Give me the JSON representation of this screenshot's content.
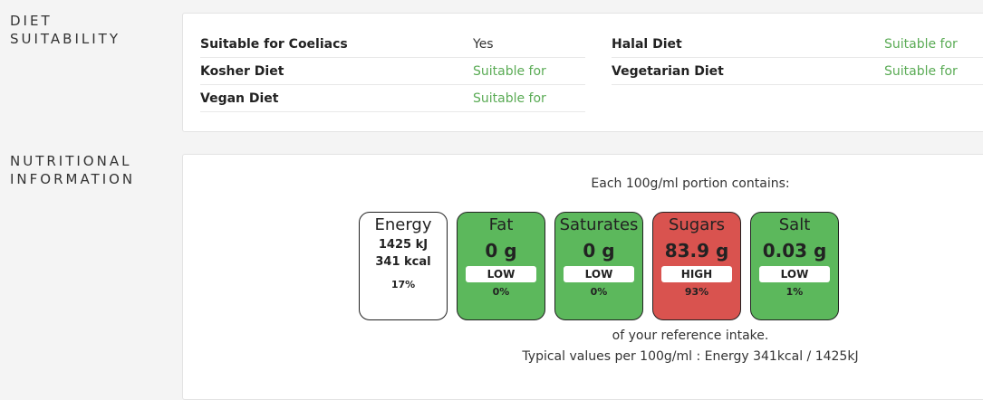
{
  "diet": {
    "label_line1": "DIET",
    "label_line2": "SUITABILITY",
    "left": [
      {
        "name": "Suitable for Coeliacs",
        "value": "Yes"
      },
      {
        "name": "Kosher Diet",
        "value": "Suitable for"
      },
      {
        "name": "Vegan Diet",
        "value": "Suitable for"
      }
    ],
    "right": [
      {
        "name": "Halal Diet",
        "value": "Suitable for"
      },
      {
        "name": "Vegetarian Diet",
        "value": "Suitable for"
      }
    ]
  },
  "nutrition": {
    "label_line1": "NUTRITIONAL",
    "label_line2": "INFORMATION",
    "portion_text": "Each 100g/ml portion contains:",
    "energy": {
      "title": "Energy",
      "kj": "1425 kJ",
      "kcal": "341 kcal",
      "percent": "17%"
    },
    "boxes": [
      {
        "title": "Fat",
        "amount": "0 g",
        "level": "LOW",
        "percent": "0%",
        "color": "#5cb85c"
      },
      {
        "title": "Saturates",
        "amount": "0 g",
        "level": "LOW",
        "percent": "0%",
        "color": "#5cb85c"
      },
      {
        "title": "Sugars",
        "amount": "83.9 g",
        "level": "HIGH",
        "percent": "93%",
        "color": "#d9534f"
      },
      {
        "title": "Salt",
        "amount": "0.03 g",
        "level": "LOW",
        "percent": "1%",
        "color": "#5cb85c"
      }
    ],
    "reference_text": "of your reference intake.",
    "typical_text": "Typical values per 100g/ml : Energy 341kcal / 1425kJ"
  }
}
